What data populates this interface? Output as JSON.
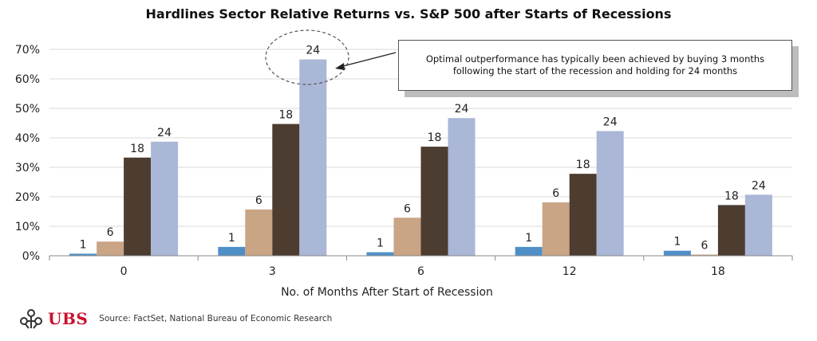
{
  "chart_data": {
    "type": "bar",
    "title": "Hardlines Sector Relative Returns vs. S&P 500 after Starts of Recessions",
    "xlabel": "No. of Months After Start of Recession",
    "ylabel": "",
    "categories": [
      "0",
      "3",
      "6",
      "12",
      "18"
    ],
    "ylim": [
      0,
      70
    ],
    "yticks": [
      "0%",
      "10%",
      "20%",
      "30%",
      "40%",
      "50%",
      "60%",
      "70%"
    ],
    "grid": true,
    "series": [
      {
        "name": "1",
        "color": "#4f8fc8",
        "values": [
          0.7,
          3.0,
          1.2,
          3.0,
          1.7
        ]
      },
      {
        "name": "6",
        "color": "#c9a485",
        "values": [
          4.8,
          15.7,
          12.9,
          18.1,
          0.4
        ]
      },
      {
        "name": "18",
        "color": "#4d3c30",
        "values": [
          33.3,
          44.7,
          37.0,
          27.8,
          17.2
        ]
      },
      {
        "name": "24",
        "color": "#aab7d6",
        "values": [
          38.7,
          66.6,
          46.7,
          42.3,
          20.7
        ]
      }
    ]
  },
  "callout": {
    "line1": "Optimal outperformance  has typically been achieved  by buying 3 months",
    "line2": "following  the start of the recession and holding for 24 months"
  },
  "footer": {
    "brand": "UBS",
    "source": "Source: FactSet, National Bureau of Economic Research"
  }
}
